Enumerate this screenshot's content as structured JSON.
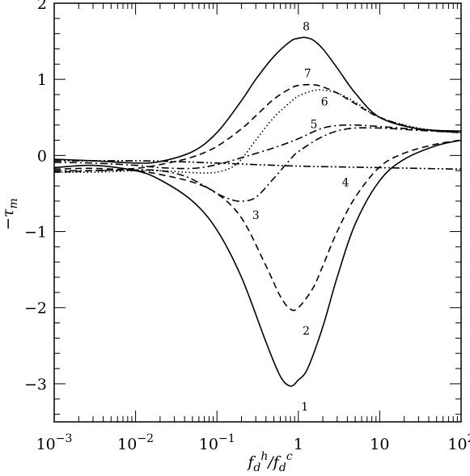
{
  "chart_data": {
    "type": "line",
    "title": "",
    "xlabel": {
      "f1": "f",
      "sub1": "d",
      "sup1": "h",
      "slash": "/",
      "f2": "f",
      "sub2": "d",
      "sup2": "c"
    },
    "ylabel": {
      "sign": "−",
      "sym": "τ",
      "sub": "m"
    },
    "xscale": "log",
    "xlim": [
      0.001,
      100
    ],
    "ylim": [
      -3.5,
      2
    ],
    "grid": false,
    "legend": "none",
    "x_ticks": [
      {
        "value": 0.001,
        "base": "10",
        "exp": "−3"
      },
      {
        "value": 0.01,
        "base": "10",
        "exp": "−2"
      },
      {
        "value": 0.1,
        "base": "10",
        "exp": "−1"
      },
      {
        "value": 1,
        "base": "1",
        "exp": ""
      },
      {
        "value": 10,
        "base": "10",
        "exp": ""
      },
      {
        "value": 100,
        "base": "10",
        "exp": "2"
      }
    ],
    "y_ticks": [
      {
        "value": 2,
        "label": "2"
      },
      {
        "value": 1,
        "label": "1"
      },
      {
        "value": 0,
        "label": "0"
      },
      {
        "value": -1,
        "label": "−1"
      },
      {
        "value": -2,
        "label": "−2"
      },
      {
        "value": -3,
        "label": "−3"
      }
    ],
    "series": [
      {
        "id": "1",
        "style": "solid",
        "label": {
          "text": "1",
          "x": 1.2,
          "y": -3.3
        },
        "x": [
          0.001,
          0.003,
          0.01,
          0.02,
          0.05,
          0.1,
          0.2,
          0.4,
          0.6,
          0.8,
          1.0,
          1.3,
          2.0,
          3.0,
          5.0,
          10,
          20,
          50,
          100
        ],
        "y": [
          -0.16,
          -0.13,
          -0.2,
          -0.32,
          -0.6,
          -0.98,
          -1.6,
          -2.45,
          -2.9,
          -3.03,
          -2.95,
          -2.8,
          -2.25,
          -1.6,
          -0.9,
          -0.33,
          -0.05,
          0.13,
          0.2
        ]
      },
      {
        "id": "2",
        "style": "dashed",
        "label": {
          "text": "2",
          "x": 1.25,
          "y": -2.3
        },
        "x": [
          0.001,
          0.003,
          0.01,
          0.02,
          0.05,
          0.1,
          0.2,
          0.4,
          0.6,
          0.8,
          1.0,
          1.5,
          2.0,
          3.0,
          5.0,
          10,
          20,
          50,
          100
        ],
        "y": [
          -0.18,
          -0.17,
          -0.2,
          -0.25,
          -0.35,
          -0.5,
          -0.82,
          -1.45,
          -1.85,
          -2.02,
          -2.0,
          -1.75,
          -1.45,
          -1.0,
          -0.55,
          -0.15,
          0.03,
          0.15,
          0.2
        ]
      },
      {
        "id": "3",
        "style": "dash-dot",
        "label": {
          "text": "3",
          "x": 0.3,
          "y": -0.78
        },
        "x": [
          0.001,
          0.003,
          0.01,
          0.02,
          0.04,
          0.07,
          0.1,
          0.15,
          0.2,
          0.3,
          0.5,
          0.8,
          1.0,
          2.0,
          4.0,
          10,
          30,
          100
        ],
        "y": [
          -0.2,
          -0.2,
          -0.19,
          -0.2,
          -0.27,
          -0.4,
          -0.5,
          -0.58,
          -0.6,
          -0.55,
          -0.3,
          -0.05,
          0.05,
          0.25,
          0.35,
          0.36,
          0.33,
          0.3
        ]
      },
      {
        "id": "4",
        "style": "dash-dot-dot",
        "label": {
          "text": "4",
          "x": 3.8,
          "y": -0.35
        },
        "x": [
          0.001,
          0.01,
          0.03,
          0.1,
          0.3,
          1,
          3,
          10,
          30,
          100
        ],
        "y": [
          -0.07,
          -0.07,
          -0.08,
          -0.1,
          -0.12,
          -0.14,
          -0.15,
          -0.16,
          -0.17,
          -0.18
        ]
      },
      {
        "id": "5",
        "style": "dash-dot",
        "label": {
          "text": "5",
          "x": 1.55,
          "y": 0.41
        },
        "x": [
          0.001,
          0.003,
          0.01,
          0.02,
          0.05,
          0.1,
          0.2,
          0.5,
          1.0,
          2.0,
          4.0,
          10,
          30,
          100
        ],
        "y": [
          -0.09,
          -0.1,
          -0.13,
          -0.16,
          -0.17,
          -0.12,
          -0.03,
          0.1,
          0.22,
          0.36,
          0.4,
          0.38,
          0.34,
          0.3
        ]
      },
      {
        "id": "6",
        "style": "dotted",
        "label": {
          "text": "6",
          "x": 2.1,
          "y": 0.71
        },
        "x": [
          0.001,
          0.003,
          0.01,
          0.02,
          0.04,
          0.07,
          0.1,
          0.15,
          0.2,
          0.3,
          0.5,
          0.8,
          1.0,
          1.5,
          2.0,
          3.0,
          5.0,
          10,
          30,
          100
        ],
        "y": [
          -0.22,
          -0.22,
          -0.2,
          -0.2,
          -0.22,
          -0.23,
          -0.22,
          -0.16,
          -0.05,
          0.2,
          0.5,
          0.7,
          0.78,
          0.85,
          0.86,
          0.82,
          0.7,
          0.5,
          0.36,
          0.3
        ]
      },
      {
        "id": "7",
        "style": "dashed",
        "label": {
          "text": "7",
          "x": 1.3,
          "y": 1.08
        },
        "x": [
          0.001,
          0.003,
          0.01,
          0.02,
          0.05,
          0.1,
          0.2,
          0.3,
          0.5,
          0.8,
          1.0,
          1.5,
          2.0,
          3.0,
          5.0,
          10,
          30,
          100
        ],
        "y": [
          -0.22,
          -0.2,
          -0.17,
          -0.12,
          -0.02,
          0.12,
          0.35,
          0.52,
          0.74,
          0.88,
          0.92,
          0.93,
          0.9,
          0.82,
          0.68,
          0.5,
          0.35,
          0.3
        ]
      },
      {
        "id": "8",
        "style": "solid",
        "label": {
          "text": "8",
          "x": 1.25,
          "y": 1.7
        },
        "x": [
          0.001,
          0.003,
          0.01,
          0.02,
          0.05,
          0.1,
          0.2,
          0.3,
          0.5,
          0.8,
          1.0,
          1.2,
          1.5,
          2.0,
          3.0,
          5.0,
          10,
          30,
          100
        ],
        "y": [
          -0.05,
          -0.07,
          -0.1,
          -0.08,
          0.05,
          0.3,
          0.72,
          1.0,
          1.3,
          1.5,
          1.54,
          1.55,
          1.52,
          1.4,
          1.15,
          0.82,
          0.5,
          0.35,
          0.32
        ]
      }
    ]
  }
}
